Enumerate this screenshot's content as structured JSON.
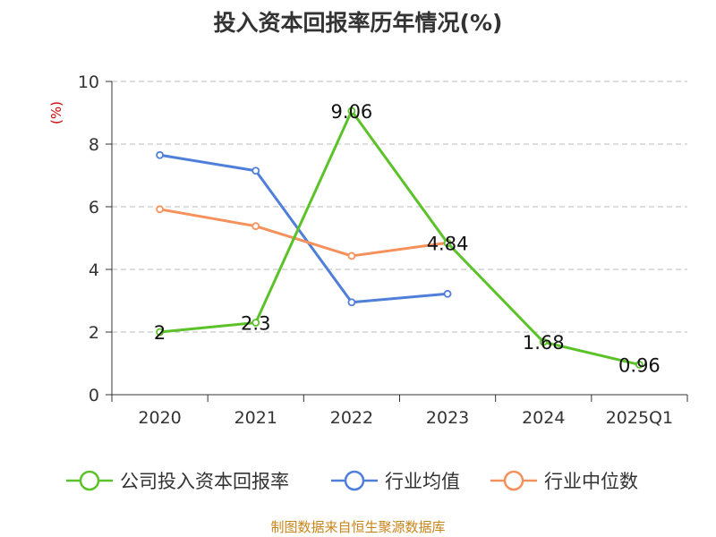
{
  "chart_data": {
    "type": "line",
    "title": "投入资本回报率历年情况(%)",
    "ylabel": "(%)",
    "categories": [
      "2020",
      "2021",
      "2022",
      "2023",
      "2024",
      "2025Q1"
    ],
    "ylim": [
      0,
      10
    ],
    "yticks": [
      "0",
      "2",
      "4",
      "6",
      "8",
      "10"
    ],
    "grid": true,
    "legend_position": "bottom",
    "series": [
      {
        "name": "公司投入资本回报率",
        "color": "#5cc22a",
        "values": [
          2,
          2.3,
          9.06,
          4.84,
          1.68,
          0.96
        ],
        "labels": [
          "2",
          "2.3",
          "9.06",
          "4.84",
          "1.68",
          "0.96"
        ]
      },
      {
        "name": "行业均值",
        "color": "#4f7fd8",
        "values": [
          7.65,
          7.15,
          2.95,
          3.22,
          null,
          null
        ]
      },
      {
        "name": "行业中位数",
        "color": "#f5915a",
        "values": [
          5.92,
          5.38,
          4.43,
          4.85,
          null,
          null
        ]
      }
    ]
  },
  "source": "制图数据来自恒生聚源数据库"
}
